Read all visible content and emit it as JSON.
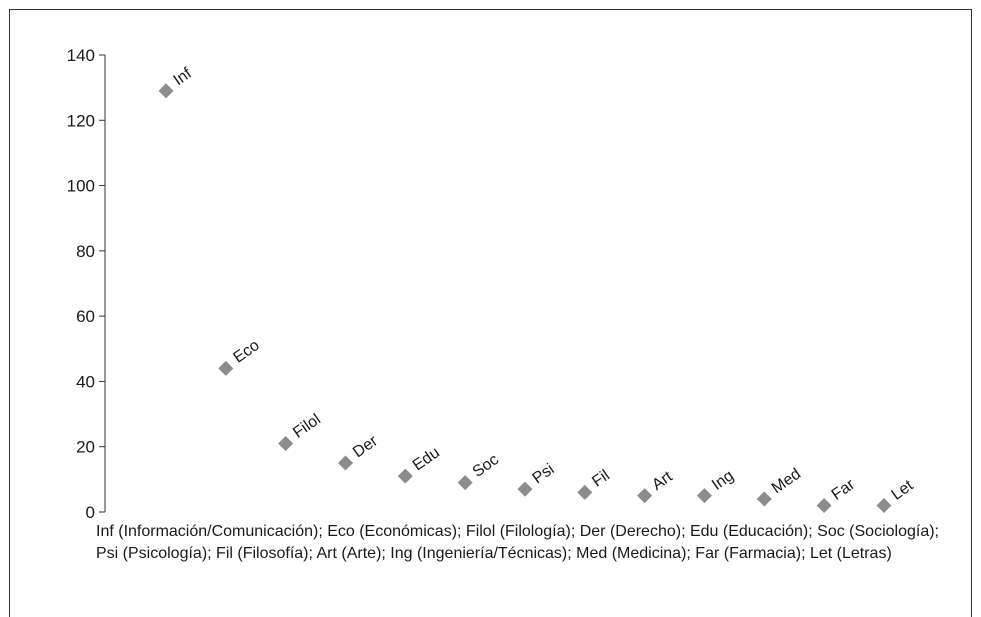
{
  "chart_data": {
    "type": "scatter",
    "title": "",
    "xlabel": "",
    "ylabel": "",
    "ylim": [
      0,
      140
    ],
    "yticks": [
      0,
      20,
      40,
      60,
      80,
      100,
      120,
      140
    ],
    "grid": false,
    "legend_placement": "bottom",
    "marker": "diamond",
    "marker_color": "#8c8c8c",
    "points": [
      {
        "label": "Inf",
        "y": 129
      },
      {
        "label": "Eco",
        "y": 44
      },
      {
        "label": "Filol",
        "y": 21
      },
      {
        "label": "Der",
        "y": 15
      },
      {
        "label": "Edu",
        "y": 11
      },
      {
        "label": "Soc",
        "y": 9
      },
      {
        "label": "Psi",
        "y": 7
      },
      {
        "label": "Fil",
        "y": 6
      },
      {
        "label": "Art",
        "y": 5
      },
      {
        "label": "Ing",
        "y": 5
      },
      {
        "label": "Med",
        "y": 4
      },
      {
        "label": "Far",
        "y": 2
      },
      {
        "label": "Let",
        "y": 2
      }
    ],
    "legend_text": "Inf (Información/Comunicación); Eco (Económicas); Filol (Filología); Der (Derecho); Edu (Educación); Soc (Sociología); Psi (Psicología); Fil (Filosofía); Art (Arte); Ing (Ingeniería/Técnicas); Med (Medicina); Far (Farmacia); Let (Letras)"
  }
}
